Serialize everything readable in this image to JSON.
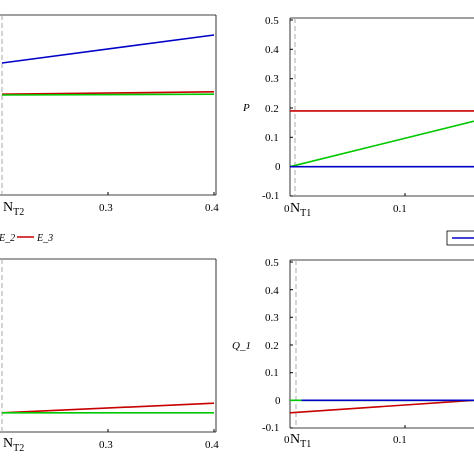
{
  "chart_data": [
    {
      "id": "top_left",
      "type": "line",
      "marker_label": "N",
      "marker_sub": "T2",
      "x_ticks": [
        "0.3",
        "0.4"
      ],
      "xlim": [
        0.2,
        0.4
      ],
      "ylim": [
        0,
        0.5
      ],
      "series": [
        {
          "color": "#0000c8",
          "x": [
            0.2,
            0.4
          ],
          "y": [
            0.38,
            0.45
          ]
        },
        {
          "color": "#c80000",
          "x": [
            0.2,
            0.4
          ],
          "y": [
            0.302,
            0.308
          ]
        },
        {
          "color": "#00c800",
          "x": [
            0.2,
            0.4
          ],
          "y": [
            0.3,
            0.302
          ]
        }
      ]
    },
    {
      "id": "top_right",
      "type": "line",
      "ylabel": "P",
      "marker_label": "N",
      "marker_sub": "T1",
      "x_ticks": [
        "0",
        "0.1"
      ],
      "y_ticks": [
        "0.5",
        "0.4",
        "0.3",
        "0.2",
        "0.1",
        "0",
        "-0.1"
      ],
      "xlim": [
        0,
        0.2
      ],
      "ylim": [
        -0.1,
        0.5
      ],
      "series": [
        {
          "color": "#c80000",
          "x": [
            0,
            0.2
          ],
          "y": [
            0.19,
            0.19
          ]
        },
        {
          "color": "#00c800",
          "x": [
            0,
            0.2
          ],
          "y": [
            0.0,
            0.155
          ]
        },
        {
          "color": "#0000c8",
          "x": [
            0,
            0.2
          ],
          "y": [
            0.0,
            0.0
          ]
        }
      ]
    },
    {
      "id": "bottom_left",
      "type": "line",
      "marker_label": "N",
      "marker_sub": "T2",
      "x_ticks": [
        "0.3",
        "0.4"
      ],
      "xlim": [
        0.2,
        0.4
      ],
      "ylim": [
        0,
        0.5
      ],
      "series": [
        {
          "color": "#c80000",
          "x": [
            0.2,
            0.4
          ],
          "y": [
            0.1,
            0.125
          ]
        },
        {
          "color": "#00c800",
          "x": [
            0.2,
            0.4
          ],
          "y": [
            0.1,
            0.1
          ]
        }
      ]
    },
    {
      "id": "bottom_right",
      "type": "line",
      "ylabel": "Q_1",
      "marker_label": "N",
      "marker_sub": "T1",
      "x_ticks": [
        "0",
        "0.1"
      ],
      "y_ticks": [
        "0.5",
        "0.4",
        "0.3",
        "0.2",
        "0.1",
        "0",
        "-0.1"
      ],
      "xlim": [
        0,
        0.2
      ],
      "ylim": [
        -0.1,
        0.5
      ],
      "series": [
        {
          "color": "#c80000",
          "x": [
            0,
            0.2
          ],
          "y": [
            -0.045,
            0.0
          ]
        },
        {
          "color": "#00c800",
          "x": [
            0,
            0.2
          ],
          "y": [
            0.0,
            0.0
          ]
        },
        {
          "color": "#0000c8",
          "x": [
            0.01,
            0.2
          ],
          "y": [
            0.0,
            0.0
          ]
        }
      ]
    }
  ],
  "legends": {
    "left": {
      "fragment": "E_2",
      "label": "E_3",
      "color": "#c80000"
    },
    "right": {
      "color": "#0000c8"
    }
  }
}
